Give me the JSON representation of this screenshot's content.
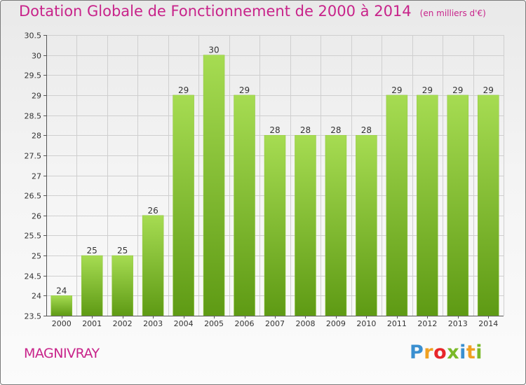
{
  "header": {
    "title": "Dotation Globale de Fonctionnement de 2000 à 2014",
    "unit": "(en milliers d'€)"
  },
  "footer": {
    "commune": "MAGNIVRAY",
    "logo_letters": [
      "P",
      "r",
      "o",
      "x",
      "i",
      "t",
      "i"
    ],
    "logo_colors": [
      "#3a8fd0",
      "#f0a020",
      "#e8262a",
      "#7ab928",
      "#3a8fd0",
      "#f0a020",
      "#7ab928"
    ]
  },
  "colors": {
    "bar_light": "#a6dc52",
    "bar_dark": "#5e9a14",
    "title": "#c8238a",
    "grid": "#cfcfcf"
  },
  "chart_data": {
    "type": "bar",
    "title": "Dotation Globale de Fonctionnement de 2000 à 2014",
    "subtitle": "(en milliers d'€)",
    "categories": [
      "2000",
      "2001",
      "2002",
      "2003",
      "2004",
      "2005",
      "2006",
      "2007",
      "2008",
      "2009",
      "2010",
      "2011",
      "2012",
      "2013",
      "2014"
    ],
    "values": [
      24,
      25,
      25,
      26,
      29,
      30,
      29,
      28,
      28,
      28,
      28,
      29,
      29,
      29,
      29
    ],
    "ylim": [
      23.5,
      30.5
    ],
    "yticks": [
      "23.5",
      "24",
      "24.5",
      "25",
      "25.5",
      "26",
      "26.5",
      "27",
      "27.5",
      "28",
      "28.5",
      "29",
      "29.5",
      "30",
      "30.5"
    ],
    "grid": true,
    "legend": "none"
  }
}
